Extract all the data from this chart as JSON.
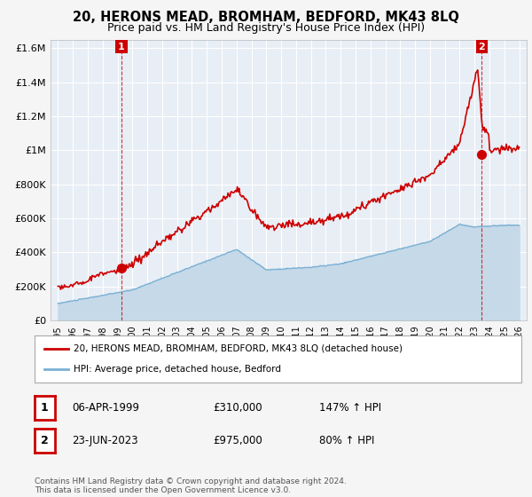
{
  "title": "20, HERONS MEAD, BROMHAM, BEDFORD, MK43 8LQ",
  "subtitle": "Price paid vs. HM Land Registry's House Price Index (HPI)",
  "ylim": [
    0,
    1650000
  ],
  "yticks": [
    0,
    200000,
    400000,
    600000,
    800000,
    1000000,
    1200000,
    1400000,
    1600000
  ],
  "ytick_labels": [
    "£0",
    "£200K",
    "£400K",
    "£600K",
    "£800K",
    "£1M",
    "£1.2M",
    "£1.4M",
    "£1.6M"
  ],
  "background_color": "#f5f5f5",
  "plot_bg_color": "#e8eef5",
  "grid_color": "#ffffff",
  "red_color": "#cc0000",
  "blue_color": "#7ab0d4",
  "blue_fill_color": "#c5d9e8",
  "sale1_year": 1999.27,
  "sale1_price": 310000,
  "sale2_year": 2023.48,
  "sale2_price": 975000,
  "legend_label_red": "20, HERONS MEAD, BROMHAM, BEDFORD, MK43 8LQ (detached house)",
  "legend_label_blue": "HPI: Average price, detached house, Bedford",
  "table_row1": [
    "1",
    "06-APR-1999",
    "£310,000",
    "147% ↑ HPI"
  ],
  "table_row2": [
    "2",
    "23-JUN-2023",
    "£975,000",
    "80% ↑ HPI"
  ],
  "footer": "Contains HM Land Registry data © Crown copyright and database right 2024.\nThis data is licensed under the Open Government Licence v3.0.",
  "title_fontsize": 10.5,
  "subtitle_fontsize": 9,
  "tick_fontsize": 8
}
